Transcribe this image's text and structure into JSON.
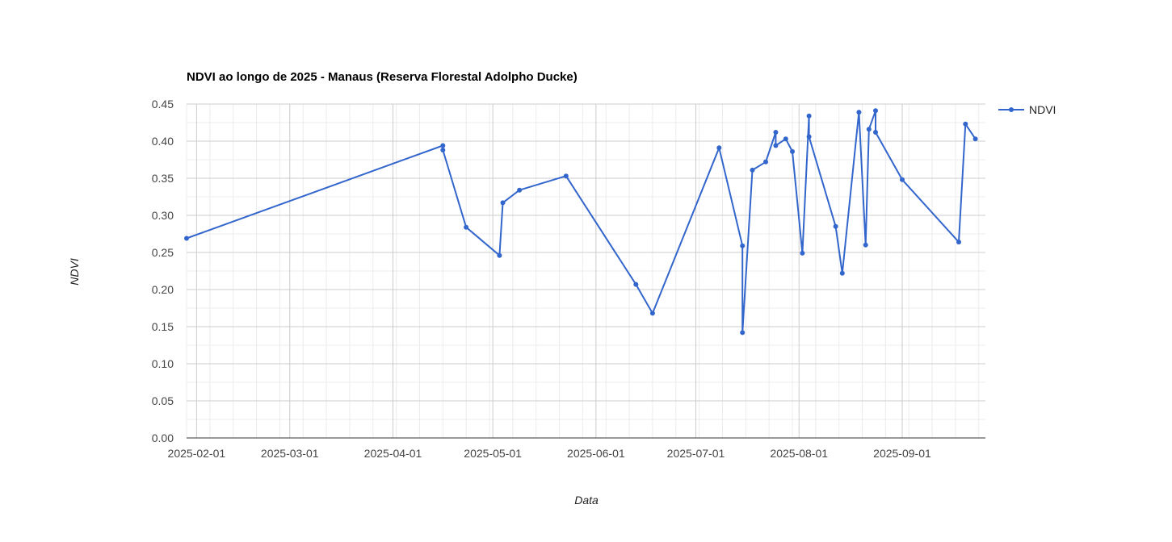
{
  "chart_data": {
    "type": "line",
    "title": "NDVI ao longo de 2025 - Manaus (Reserva Florestal Adolpho Ducke)",
    "xlabel": "Data",
    "ylabel": "NDVI",
    "legend": {
      "position": "top-right",
      "entries": [
        "NDVI"
      ]
    },
    "grid": true,
    "color": "#3366cc",
    "ylim": [
      0,
      0.45
    ],
    "yticks": [
      "0.00",
      "0.05",
      "0.10",
      "0.15",
      "0.20",
      "0.25",
      "0.30",
      "0.35",
      "0.40",
      "0.45"
    ],
    "xlim": [
      "2025-01-29",
      "2025-09-26"
    ],
    "xticks": [
      "2025-02-01",
      "2025-03-01",
      "2025-04-01",
      "2025-05-01",
      "2025-06-01",
      "2025-07-01",
      "2025-08-01",
      "2025-09-01"
    ],
    "series": [
      {
        "name": "NDVI",
        "points": [
          {
            "x": "2025-01-29",
            "y": 0.269
          },
          {
            "x": "2025-04-16",
            "y": 0.394
          },
          {
            "x": "2025-04-16",
            "y": 0.388
          },
          {
            "x": "2025-04-23",
            "y": 0.284
          },
          {
            "x": "2025-05-03",
            "y": 0.246
          },
          {
            "x": "2025-05-04",
            "y": 0.317
          },
          {
            "x": "2025-05-09",
            "y": 0.334
          },
          {
            "x": "2025-05-23",
            "y": 0.353
          },
          {
            "x": "2025-06-13",
            "y": 0.207
          },
          {
            "x": "2025-06-18",
            "y": 0.168
          },
          {
            "x": "2025-07-08",
            "y": 0.391
          },
          {
            "x": "2025-07-15",
            "y": 0.259
          },
          {
            "x": "2025-07-15",
            "y": 0.142
          },
          {
            "x": "2025-07-18",
            "y": 0.361
          },
          {
            "x": "2025-07-22",
            "y": 0.372
          },
          {
            "x": "2025-07-25",
            "y": 0.412
          },
          {
            "x": "2025-07-25",
            "y": 0.394
          },
          {
            "x": "2025-07-28",
            "y": 0.403
          },
          {
            "x": "2025-07-30",
            "y": 0.386
          },
          {
            "x": "2025-08-02",
            "y": 0.249
          },
          {
            "x": "2025-08-04",
            "y": 0.434
          },
          {
            "x": "2025-08-04",
            "y": 0.406
          },
          {
            "x": "2025-08-12",
            "y": 0.285
          },
          {
            "x": "2025-08-14",
            "y": 0.222
          },
          {
            "x": "2025-08-19",
            "y": 0.439
          },
          {
            "x": "2025-08-21",
            "y": 0.26
          },
          {
            "x": "2025-08-22",
            "y": 0.416
          },
          {
            "x": "2025-08-24",
            "y": 0.441
          },
          {
            "x": "2025-08-24",
            "y": 0.412
          },
          {
            "x": "2025-09-01",
            "y": 0.348
          },
          {
            "x": "2025-09-18",
            "y": 0.264
          },
          {
            "x": "2025-09-20",
            "y": 0.423
          },
          {
            "x": "2025-09-23",
            "y": 0.403
          }
        ]
      }
    ]
  }
}
